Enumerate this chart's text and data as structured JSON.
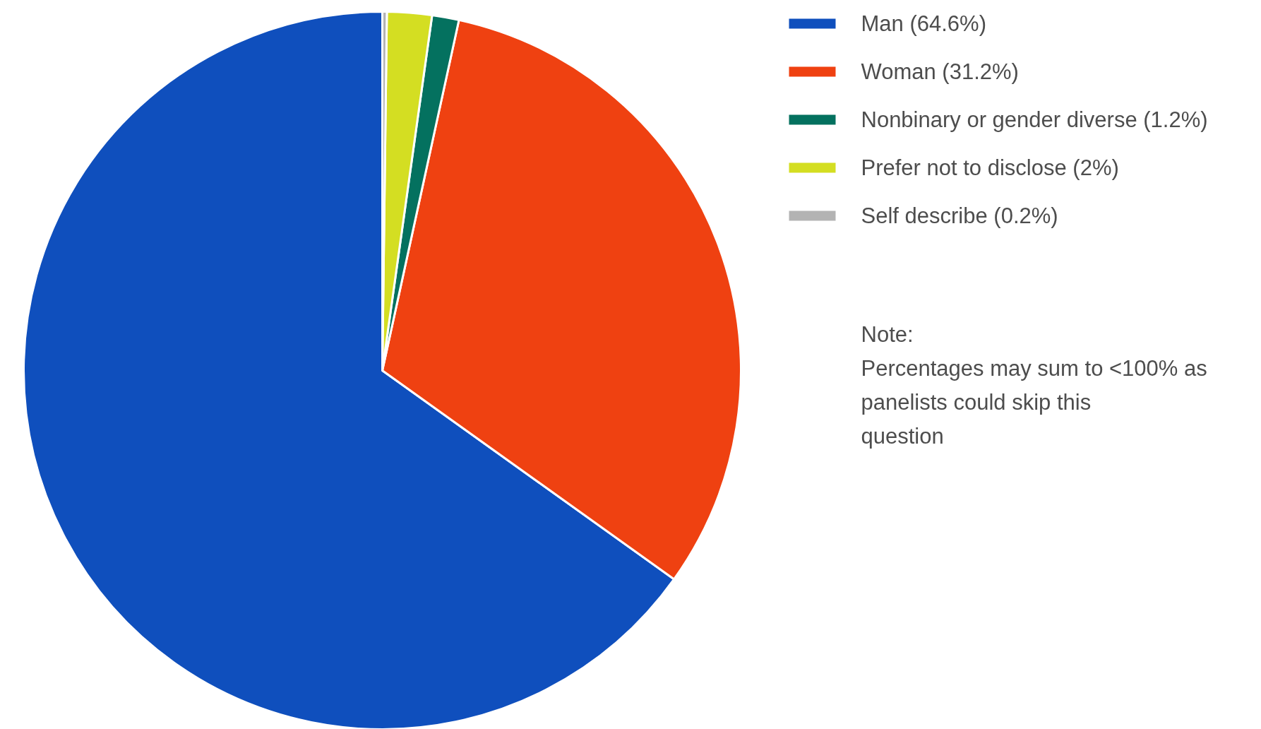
{
  "chart_data": {
    "type": "pie",
    "categories": [
      "Man (64.6%)",
      "Woman (31.2%)",
      "Nonbinary or gender diverse (1.2%)",
      "Prefer not to disclose (2%)",
      "Self describe (0.2%)"
    ],
    "values": [
      64.6,
      31.2,
      1.2,
      2,
      0.2
    ],
    "colors": [
      "#0f4fbd",
      "#ef4111",
      "#04715f",
      "#d4de22",
      "#b3b3b3"
    ],
    "legend": "top right",
    "annotations": [
      "Note:",
      "Percentages may sum to <100% as panelists could skip this question"
    ]
  }
}
